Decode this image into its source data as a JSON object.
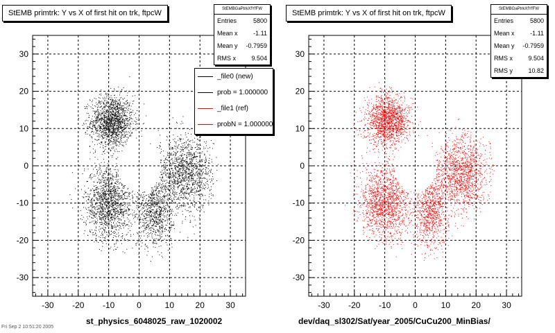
{
  "chart_data": [
    {
      "type": "scatter",
      "title": "StEMB primtrk: Y vs X of first hit on trk, ftpcW",
      "xlabel": "st_physics_6048025_raw_1020002",
      "ylabel": "",
      "xlim": [
        -35,
        35
      ],
      "ylim": [
        -35,
        35
      ],
      "x_ticks": [
        -30,
        -20,
        -10,
        0,
        10,
        20,
        30
      ],
      "y_ticks": [
        -30,
        -20,
        -10,
        0,
        10,
        20,
        30
      ],
      "grid": true,
      "series_color": "#000000",
      "stats": {
        "name": "StEMBGaPtrkXfYfFW",
        "rows": [
          {
            "label": "Entries",
            "value": "5800"
          },
          {
            "label": "Mean x",
            "value": "-1.11"
          },
          {
            "label": "Mean y",
            "value": "-0.7959"
          },
          {
            "label": "RMS x",
            "value": "9.504"
          }
        ]
      },
      "legend": {
        "placement": "top-right",
        "entries": [
          {
            "label": "_file0 (new)",
            "color": "#000000"
          },
          {
            "label": "prob = 1.000000",
            "color": "#000000"
          },
          {
            "label": "_file1 (ref)",
            "color": "#ff0000"
          },
          {
            "label": "probN = 1.000000",
            "color": "#ff0000"
          }
        ]
      }
    },
    {
      "type": "scatter",
      "title": "StEMB primtrk: Y vs X of first hit on trk, ftpcW",
      "xlabel": "dev/daq_sl302/Sat/year_2005/CuCu200_MinBias/",
      "ylabel": "",
      "xlim": [
        -35,
        35
      ],
      "ylim": [
        -35,
        35
      ],
      "x_ticks": [
        -30,
        -20,
        -10,
        0,
        10,
        20,
        30
      ],
      "y_ticks": [
        -30,
        -20,
        -10,
        0,
        10,
        20,
        30
      ],
      "grid": true,
      "series_color": "#ff0000",
      "stats": {
        "name": "StEMBGaPtrkXfYfFW",
        "rows": [
          {
            "label": "Entries",
            "value": "5800"
          },
          {
            "label": "Mean x",
            "value": "-1.11"
          },
          {
            "label": "Mean y",
            "value": "-0.7959"
          },
          {
            "label": "RMS x",
            "value": "9.504"
          },
          {
            "label": "RMS y",
            "value": "10.82"
          }
        ]
      }
    }
  ],
  "footer_text": "Fri Sep 2 10:51:20 2005"
}
